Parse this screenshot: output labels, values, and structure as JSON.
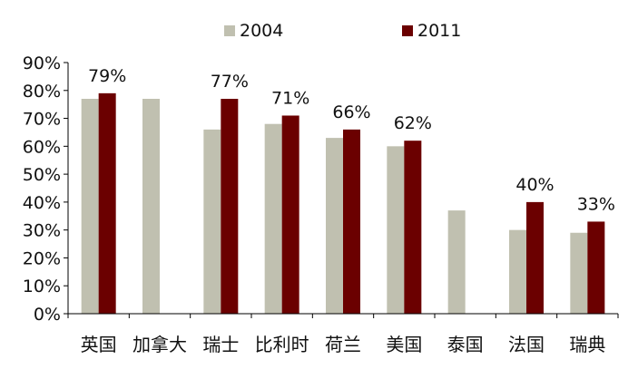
{
  "chart_data": {
    "type": "bar",
    "categories": [
      "英国",
      "加拿大",
      "瑞士",
      "比利时",
      "荷兰",
      "美国",
      "泰国",
      "法国",
      "瑞典"
    ],
    "series": [
      {
        "name": "2004",
        "color": "#c0c0b0",
        "values": [
          77,
          77,
          66,
          68,
          63,
          60,
          37,
          30,
          29
        ]
      },
      {
        "name": "2011",
        "color": "#6b0000",
        "values": [
          79,
          null,
          77,
          71,
          66,
          62,
          null,
          40,
          33
        ]
      }
    ],
    "data_labels": [
      "79%",
      "",
      "77%",
      "71%",
      "66%",
      "62%",
      "",
      "40%",
      "33%"
    ],
    "y_ticks": [
      "0%",
      "10%",
      "20%",
      "30%",
      "40%",
      "50%",
      "60%",
      "70%",
      "80%",
      "90%"
    ],
    "ylim": [
      0,
      90
    ],
    "legend_position": "top",
    "grid": false
  }
}
